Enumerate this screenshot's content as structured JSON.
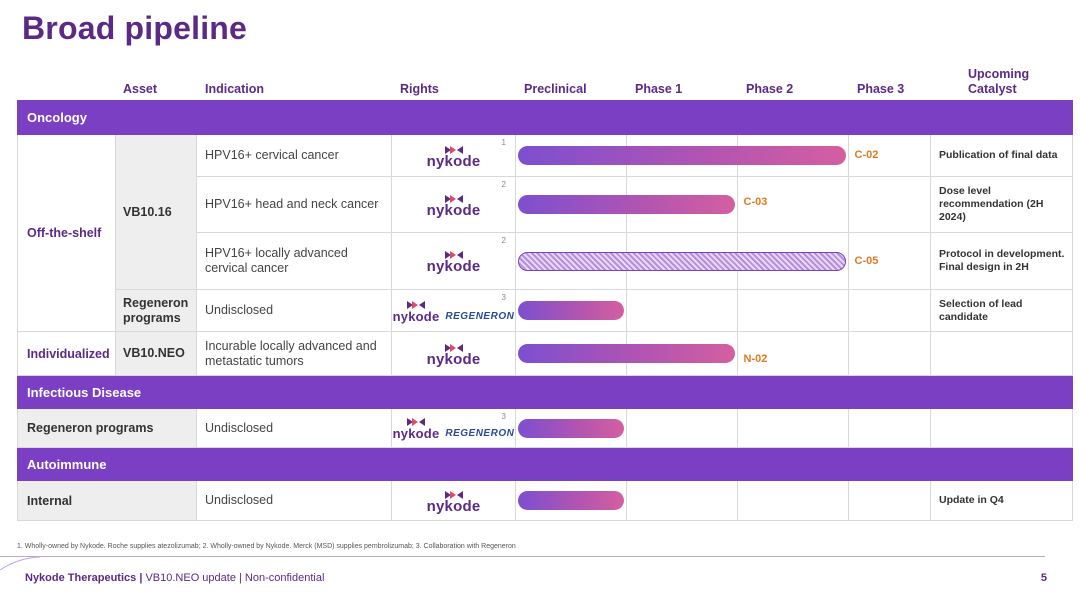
{
  "title": "Broad pipeline",
  "headers": {
    "asset": "Asset",
    "indication": "Indication",
    "rights": "Rights",
    "preclinical": "Preclinical",
    "phase1": "Phase 1",
    "phase2": "Phase 2",
    "phase3": "Phase 3",
    "catalyst_line1": "Upcoming",
    "catalyst_line2": "Catalyst"
  },
  "phases": [
    "Preclinical",
    "Phase 1",
    "Phase 2",
    "Phase 3"
  ],
  "sections": {
    "oncology": "Oncology",
    "infectious": "Infectious Disease",
    "autoimmune": "Autoimmune"
  },
  "groups": {
    "off_the_shelf": "Off-the-shelf",
    "individualized": "Individualized"
  },
  "assets": {
    "vb1016": "VB10.16",
    "regeneron_programs_1": "Regeneron",
    "regeneron_programs_2": "programs",
    "vb10neo": "VB10.NEO",
    "regeneron_programs": "Regeneron programs",
    "internal": "Internal"
  },
  "logos": {
    "nykode": "nykode",
    "regeneron": "REGENERON"
  },
  "rows": [
    {
      "indication": "HPV16+ cervical cancer",
      "footnote": "1",
      "progress_phases": 3,
      "style": "solid",
      "trial": "C-02",
      "catalyst": "Publication of final data"
    },
    {
      "indication": "HPV16+ head and neck cancer",
      "footnote": "2",
      "progress_phases": 2,
      "style": "solid",
      "trial": "C-03",
      "catalyst": "Dose level recommendation (2H 2024)"
    },
    {
      "indication": "HPV16+ locally advanced cervical cancer",
      "footnote": "2",
      "progress_phases": 3,
      "style": "hatched",
      "trial": "C-05",
      "catalyst": "Protocol in development. Final design in 2H"
    },
    {
      "indication": "Undisclosed",
      "footnote": "3",
      "progress_phases": 1,
      "style": "solid",
      "trial": "",
      "catalyst": "Selection of lead candidate"
    },
    {
      "indication": "Incurable locally advanced and metastatic tumors",
      "footnote": "",
      "progress_phases": 2,
      "style": "solid",
      "trial": "N-02",
      "catalyst": ""
    },
    {
      "indication": "Undisclosed",
      "footnote": "3",
      "progress_phases": 1,
      "style": "solid",
      "trial": "",
      "catalyst": ""
    },
    {
      "indication": "Undisclosed",
      "footnote": "",
      "progress_phases": 1,
      "style": "solid",
      "trial": "",
      "catalyst": "Update in Q4"
    }
  ],
  "footnote": "1. Wholly-owned by Nykode. Roche supplies atezolizumab; 2. Wholly-owned by Nykode. Merck (MSD) supplies pembrolizumab; 3. Collaboration with Regeneron",
  "footer": {
    "company": "Nykode Therapeutics |",
    "text": "VB10.NEO update | Non-confidential",
    "page": "5"
  },
  "colors": {
    "brand_purple": "#5b2a86",
    "section_purple": "#7b3fc4",
    "trial_orange": "#e07a22",
    "bar_gradient_start": "#7d4fd0",
    "bar_gradient_end": "#d45fa0"
  }
}
